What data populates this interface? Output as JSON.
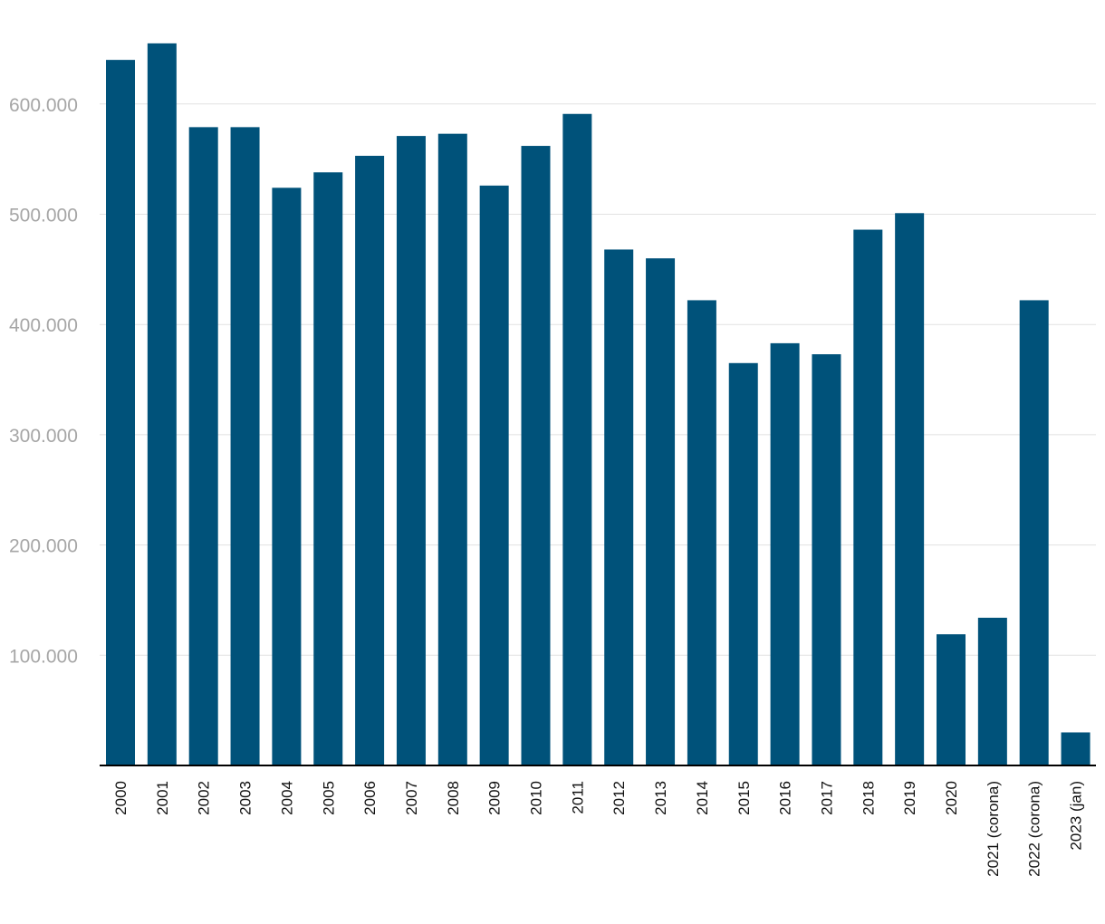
{
  "chart_data": {
    "type": "bar",
    "title": "",
    "xlabel": "",
    "ylabel": "",
    "categories": [
      "2000",
      "2001",
      "2002",
      "2003",
      "2004",
      "2005",
      "2006",
      "2007",
      "2008",
      "2009",
      "2010",
      "2011",
      "2012",
      "2013",
      "2014",
      "2015",
      "2016",
      "2017",
      "2018",
      "2019",
      "2020",
      "2021 (corona)",
      "2022 (corona)",
      "2023 (jan)"
    ],
    "series": [
      {
        "name": "",
        "color": "#00527a",
        "values": [
          640000,
          655000,
          579000,
          579000,
          524000,
          538000,
          553000,
          571000,
          573000,
          526000,
          562000,
          591000,
          468000,
          460000,
          422000,
          365000,
          383000,
          373000,
          486000,
          501000,
          119000,
          134000,
          422000,
          30000
        ]
      }
    ],
    "ylim": [
      0,
      660000
    ],
    "yticks": [
      100000,
      200000,
      300000,
      400000,
      500000,
      600000
    ],
    "ytick_labels": [
      "100.000",
      "200.000",
      "300.000",
      "400.000",
      "500.000",
      "600.000"
    ],
    "grid": true,
    "legend": "none"
  },
  "colors": {
    "bar": "#00527a",
    "grid": "#e1e1e1",
    "axis_text": "#a6a6a6",
    "category_text": "#111111",
    "baseline": "#000000"
  }
}
